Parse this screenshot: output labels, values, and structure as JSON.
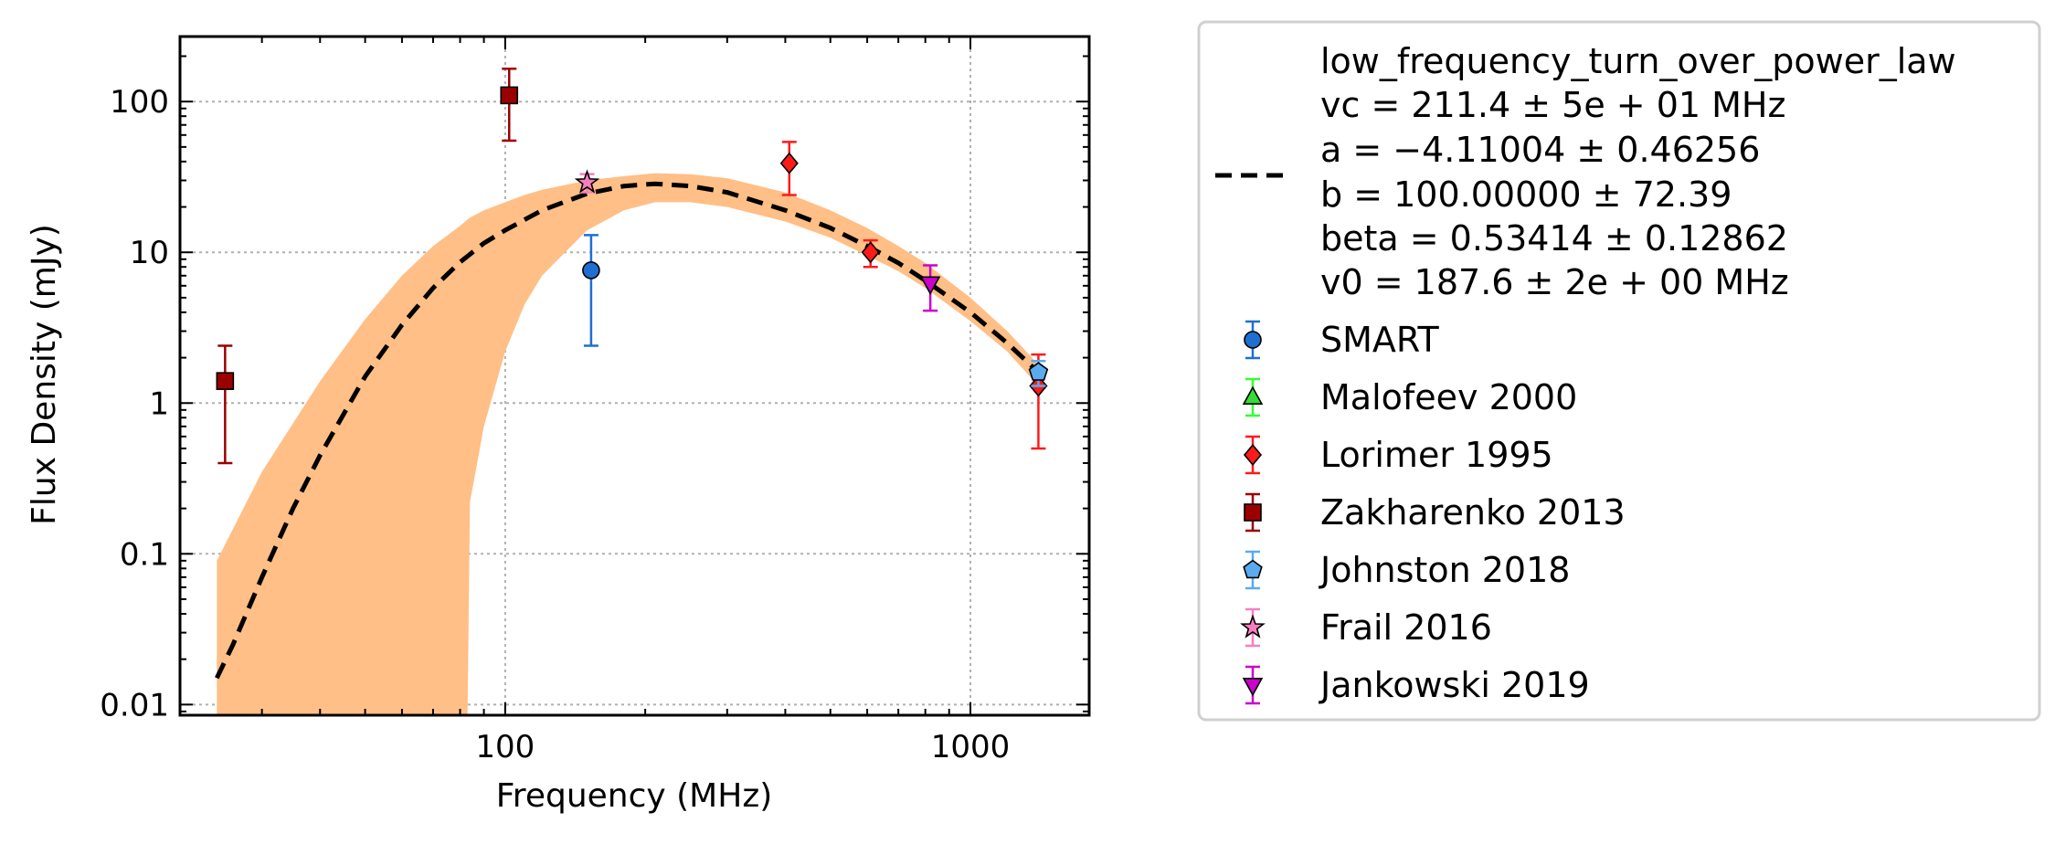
{
  "chart_data": {
    "type": "scatter",
    "xlabel": "Frequency (MHz)",
    "ylabel": "Flux Density (mJy)",
    "xscale": "log",
    "yscale": "log",
    "xlim": [
      20,
      1800
    ],
    "ylim": [
      0.0085,
      270
    ],
    "x_ticks": [
      {
        "value": 100,
        "label": "100"
      },
      {
        "value": 1000,
        "label": "1000"
      }
    ],
    "y_ticks": [
      {
        "value": 0.01,
        "label": "0.01"
      },
      {
        "value": 0.1,
        "label": "0.1"
      },
      {
        "value": 1,
        "label": "1"
      },
      {
        "value": 10,
        "label": "10"
      },
      {
        "value": 100,
        "label": "100"
      }
    ],
    "grid": true,
    "legend_position": "outside-right",
    "fit": {
      "name": "low_frequency_turn_over_power_law",
      "params_text": [
        "vc = 211.4 ± 5e + 01 MHz",
        "a = −4.11004 ± 0.46256",
        "b = 100.00000 ± 72.39",
        "beta = 0.53414 ± 0.12862",
        "v0 = 187.6 ± 2e + 00 MHz"
      ],
      "curve": [
        [
          24,
          0.015
        ],
        [
          26,
          0.025
        ],
        [
          30,
          0.07
        ],
        [
          35,
          0.2
        ],
        [
          40,
          0.45
        ],
        [
          50,
          1.5
        ],
        [
          60,
          3.3
        ],
        [
          70,
          5.8
        ],
        [
          80,
          8.6
        ],
        [
          90,
          11.5
        ],
        [
          100,
          14
        ],
        [
          120,
          19
        ],
        [
          150,
          24.5
        ],
        [
          180,
          27.5
        ],
        [
          210,
          28.5
        ],
        [
          250,
          27.5
        ],
        [
          300,
          25
        ],
        [
          400,
          19
        ],
        [
          500,
          14.5
        ],
        [
          600,
          11
        ],
        [
          700,
          8.5
        ],
        [
          800,
          6.5
        ],
        [
          1000,
          4
        ],
        [
          1200,
          2.5
        ],
        [
          1400,
          1.6
        ]
      ],
      "band": [
        [
          24,
          0.008,
          0.09
        ],
        [
          30,
          0.008,
          0.35
        ],
        [
          40,
          0.008,
          1.4
        ],
        [
          50,
          0.008,
          3.6
        ],
        [
          60,
          0.008,
          7
        ],
        [
          70,
          0.008,
          11
        ],
        [
          80,
          0.008,
          15
        ],
        [
          83,
          0.008,
          16.5
        ],
        [
          84,
          0.22,
          17
        ],
        [
          90,
          0.7,
          19
        ],
        [
          100,
          2.2,
          21.5
        ],
        [
          110,
          4.5,
          24
        ],
        [
          120,
          7,
          26
        ],
        [
          150,
          14,
          30
        ],
        [
          180,
          19,
          32
        ],
        [
          210,
          21.5,
          33.5
        ],
        [
          250,
          21.5,
          33
        ],
        [
          300,
          20,
          31
        ],
        [
          400,
          16,
          25
        ],
        [
          500,
          12.5,
          19
        ],
        [
          600,
          9.5,
          14.5
        ],
        [
          700,
          7.5,
          11
        ],
        [
          800,
          5.8,
          8.5
        ],
        [
          1000,
          3.5,
          5
        ],
        [
          1200,
          2.2,
          3
        ],
        [
          1400,
          1.3,
          1.8
        ]
      ]
    },
    "series": [
      {
        "name": "SMART",
        "marker": "circle",
        "color": "#1f6fd1",
        "ecolor": "#1f6fd1",
        "points": [
          {
            "x": 153,
            "y": 7.6,
            "ylo": 2.4,
            "yhi": 13
          }
        ]
      },
      {
        "name": "Malofeev 2000",
        "marker": "triangle-up",
        "color": "#33dd33",
        "ecolor": "#33ff33",
        "points": []
      },
      {
        "name": "Lorimer 1995",
        "marker": "diamond",
        "color": "#ff1a1a",
        "ecolor": "#ff1a1a",
        "points": [
          {
            "x": 408,
            "y": 39,
            "ylo": 24,
            "yhi": 54
          },
          {
            "x": 610,
            "y": 10,
            "ylo": 8,
            "yhi": 12
          },
          {
            "x": 1400,
            "y": 1.3,
            "ylo": 0.5,
            "yhi": 2.1
          }
        ]
      },
      {
        "name": "Zakharenko 2013",
        "marker": "square",
        "color": "#9b0000",
        "ecolor": "#9b0000",
        "points": [
          {
            "x": 25,
            "y": 1.4,
            "ylo": 0.4,
            "yhi": 2.4
          },
          {
            "x": 102,
            "y": 110,
            "ylo": 55,
            "yhi": 165
          }
        ]
      },
      {
        "name": "Johnston 2018",
        "marker": "pentagon",
        "color": "#5aaaf0",
        "ecolor": "#5aaaf0",
        "points": [
          {
            "x": 1400,
            "y": 1.6,
            "ylo": 1.3,
            "yhi": 1.9
          }
        ]
      },
      {
        "name": "Frail 2016",
        "marker": "star",
        "color": "#f77fbe",
        "ecolor": "#f77fbe",
        "points": [
          {
            "x": 150,
            "y": 29,
            "ylo": 25,
            "yhi": 33
          }
        ]
      },
      {
        "name": "Jankowski 2019",
        "marker": "triangle-down",
        "color": "#cc00cc",
        "ecolor": "#cc00cc",
        "points": [
          {
            "x": 820,
            "y": 6.2,
            "ylo": 4.1,
            "yhi": 8.2
          }
        ]
      }
    ],
    "colors": {
      "band": "#ffbf86",
      "fit_line": "#000000",
      "grid": "#b0b0b0",
      "legend_border": "#d0d0d0"
    }
  }
}
